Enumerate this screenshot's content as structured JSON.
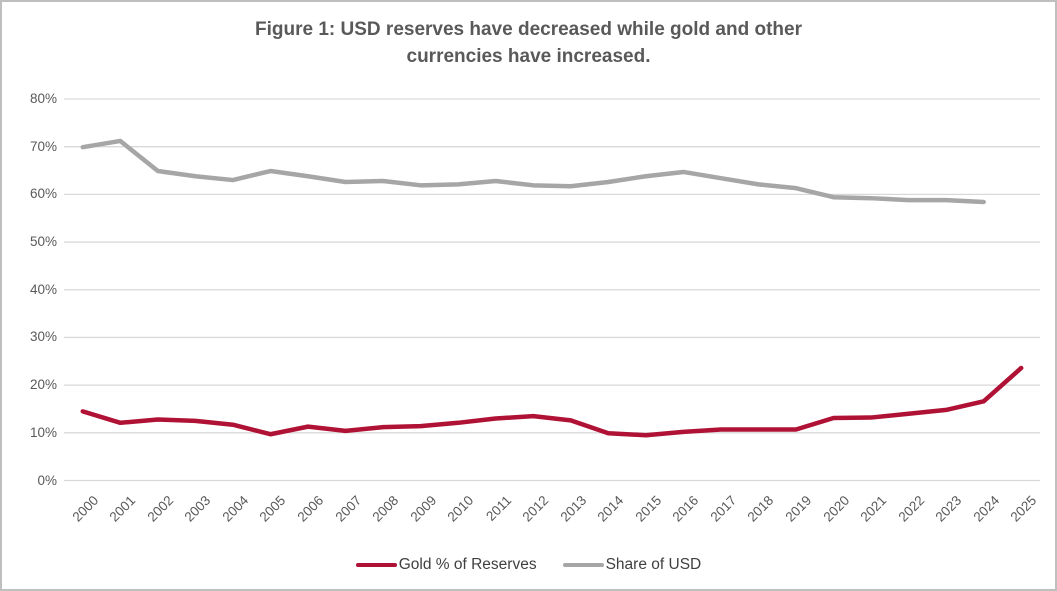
{
  "figure": {
    "title": "Figure 1: USD reserves have decreased while gold and other currencies have increased.",
    "title_lines": [
      "Figure 1: USD reserves have decreased while gold and other",
      "currencies have increased."
    ]
  },
  "colors": {
    "gold_line": "#B01236",
    "usd_line": "#A6A6A6",
    "gridline": "#D9D9D9",
    "title_text": "#595959",
    "axis_text": "#595959",
    "legend_text": "#404040",
    "border": "#BFBFBF",
    "background": "#FFFFFF"
  },
  "chart_data": {
    "type": "line",
    "title": "Figure 1: USD reserves have decreased while gold and other currencies have increased.",
    "xlabel": "",
    "ylabel": "",
    "x": [
      2000,
      2001,
      2002,
      2003,
      2004,
      2005,
      2006,
      2007,
      2008,
      2009,
      2010,
      2011,
      2012,
      2013,
      2014,
      2015,
      2016,
      2017,
      2018,
      2019,
      2020,
      2021,
      2022,
      2023,
      2024,
      2025
    ],
    "series": [
      {
        "name": "Gold % of Reserves",
        "color": "#B01236",
        "values": [
          14.5,
          12.1,
          12.8,
          12.5,
          11.7,
          9.7,
          11.3,
          10.4,
          11.2,
          11.4,
          12.1,
          13.0,
          13.5,
          12.6,
          9.9,
          9.5,
          10.2,
          10.7,
          10.7,
          10.7,
          13.1,
          13.2,
          14.0,
          14.8,
          16.6,
          23.6
        ]
      },
      {
        "name": "Share of USD",
        "color": "#A6A6A6",
        "values": [
          69.9,
          71.2,
          64.9,
          63.8,
          63.0,
          64.9,
          63.8,
          62.6,
          62.8,
          61.9,
          62.1,
          62.8,
          61.9,
          61.7,
          62.6,
          63.8,
          64.7,
          63.4,
          62.1,
          61.3,
          59.4,
          59.2,
          58.8,
          58.8,
          58.4,
          null
        ]
      }
    ],
    "ylim": [
      0,
      80
    ],
    "ytick_step": 10,
    "ytick_labels": [
      "0%",
      "10%",
      "20%",
      "30%",
      "40%",
      "50%",
      "60%",
      "70%",
      "80%"
    ],
    "grid": "horizontal",
    "legend_position": "bottom"
  },
  "legend": {
    "items": [
      {
        "label": "Gold % of Reserves",
        "color": "#B01236"
      },
      {
        "label": "Share of USD",
        "color": "#A6A6A6"
      }
    ]
  }
}
